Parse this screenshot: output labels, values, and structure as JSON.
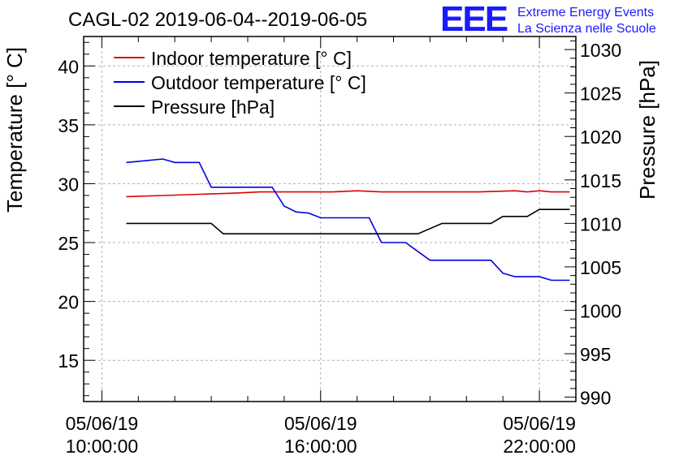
{
  "header": {
    "title": "CAGL-02 2019-06-04--2019-06-05",
    "logo_text": "EEE",
    "logo_line1": "Extreme Energy Events",
    "logo_line2": "La Scienza nelle Scuole"
  },
  "colors": {
    "indoor": "#e00000",
    "outdoor": "#0000e0",
    "pressure": "#000000",
    "logo": "#1a1aff",
    "grid": "#b0b0b0"
  },
  "chart_data": {
    "type": "line",
    "title": "CAGL-02 2019-06-04--2019-06-05",
    "xlabel": "",
    "ylabel": "Temperature [° C]",
    "ylabel_right": "Pressure [hPa]",
    "xlim_hours": [
      9.5,
      23.0
    ],
    "ylim": [
      11.5,
      42.5
    ],
    "ylim_right": [
      989.5,
      1031.5
    ],
    "grid": true,
    "legend_position": "top-left",
    "x_ticks": [
      {
        "hour": 10,
        "line1": "05/06/19",
        "line2": "10:00:00"
      },
      {
        "hour": 16,
        "line1": "05/06/19",
        "line2": "16:00:00"
      },
      {
        "hour": 22,
        "line1": "05/06/19",
        "line2": "22:00:00"
      }
    ],
    "y_ticks": [
      15,
      20,
      25,
      30,
      35,
      40
    ],
    "y_ticks_right": [
      990,
      995,
      1000,
      1005,
      1010,
      1015,
      1020,
      1025,
      1030
    ],
    "series": [
      {
        "name": "Indoor temperature [° C]",
        "axis": "left",
        "x": [
          10.67,
          11.67,
          12.67,
          13.67,
          14.33,
          15.33,
          16.33,
          17.0,
          17.67,
          19.0,
          20.33,
          21.33,
          21.67,
          22.0,
          22.33,
          22.83
        ],
        "y": [
          28.9,
          29.0,
          29.1,
          29.2,
          29.3,
          29.3,
          29.3,
          29.4,
          29.3,
          29.3,
          29.3,
          29.4,
          29.3,
          29.4,
          29.3,
          29.3
        ]
      },
      {
        "name": "Outdoor temperature [° C]",
        "axis": "left",
        "x": [
          10.67,
          11.0,
          11.67,
          12.0,
          12.67,
          13.0,
          13.33,
          14.0,
          14.67,
          15.0,
          15.33,
          15.67,
          16.0,
          17.33,
          17.67,
          18.33,
          19.0,
          19.33,
          20.67,
          21.0,
          21.33,
          22.0,
          22.33,
          22.83
        ],
        "y": [
          31.8,
          31.9,
          32.1,
          31.8,
          31.8,
          29.7,
          29.7,
          29.7,
          29.7,
          28.1,
          27.6,
          27.5,
          27.1,
          27.1,
          25.0,
          25.0,
          23.5,
          23.5,
          23.5,
          22.4,
          22.1,
          22.1,
          21.8,
          21.8
        ]
      },
      {
        "name": "Pressure [hPa]",
        "axis": "right",
        "x": [
          10.67,
          13.0,
          13.33,
          16.0,
          17.67,
          18.67,
          19.33,
          20.0,
          20.67,
          21.0,
          21.67,
          22.0,
          22.83
        ],
        "y": [
          1010.0,
          1010.0,
          1008.8,
          1008.8,
          1008.8,
          1008.8,
          1010.0,
          1010.0,
          1010.0,
          1010.8,
          1010.8,
          1011.6,
          1011.6
        ]
      }
    ]
  }
}
